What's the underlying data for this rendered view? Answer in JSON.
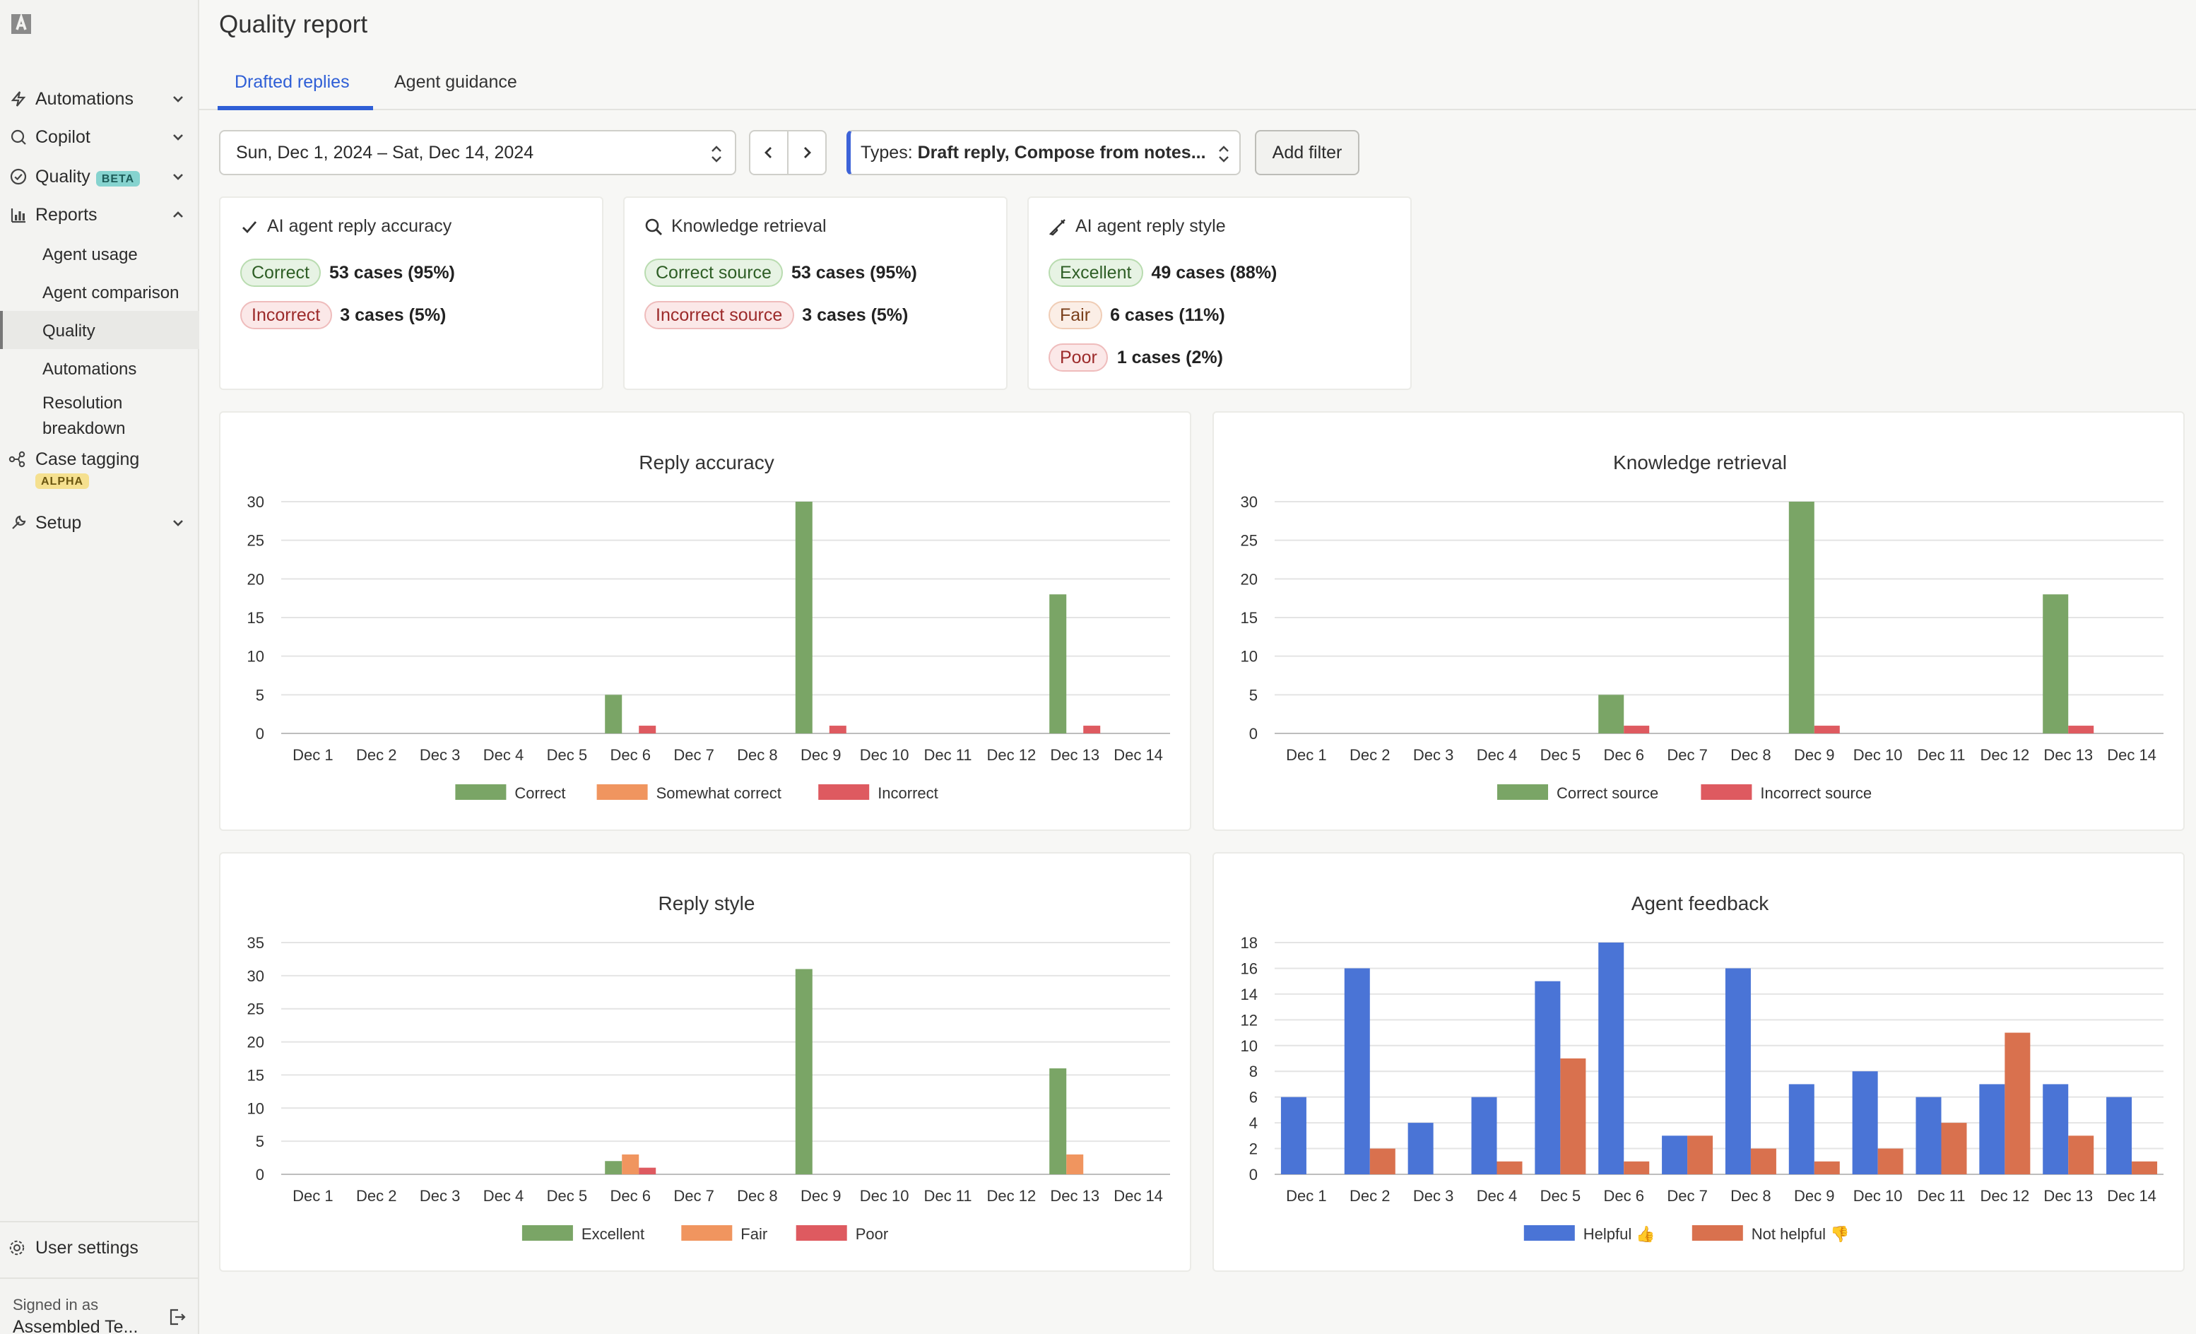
{
  "sidebar": {
    "items": [
      {
        "label": "Automations",
        "icon": "bolt-icon"
      },
      {
        "label": "Copilot",
        "icon": "chat-icon"
      },
      {
        "label": "Quality",
        "icon": "check-circle-icon",
        "badge": "BETA"
      },
      {
        "label": "Reports",
        "icon": "bar-chart-icon"
      }
    ],
    "reports_sub": [
      {
        "label": "Agent usage"
      },
      {
        "label": "Agent comparison"
      },
      {
        "label": "Quality"
      },
      {
        "label": "Automations"
      },
      {
        "label": "Resolution breakdown"
      }
    ],
    "case_tagging": {
      "label": "Case tagging",
      "badge": "ALPHA"
    },
    "setup": {
      "label": "Setup"
    },
    "user_settings": "User settings",
    "signed_in_label": "Signed in as",
    "signed_in_name": "Assembled Te..."
  },
  "header": {
    "title": "Quality report",
    "tabs": [
      "Drafted replies",
      "Agent guidance"
    ]
  },
  "filters": {
    "date_range": "Sun, Dec 1, 2024 – Sat, Dec 14, 2024",
    "types_prefix": "Types: ",
    "types_value": "Draft reply, Compose from notes...",
    "add_filter": "Add filter"
  },
  "summary": [
    {
      "title": "AI agent reply accuracy",
      "icon": "check-icon",
      "rows": [
        {
          "label": "Correct",
          "value": "53 cases (95%)",
          "tone": "good"
        },
        {
          "label": "Incorrect",
          "value": "3 cases (5%)",
          "tone": "bad"
        }
      ]
    },
    {
      "title": "Knowledge retrieval",
      "icon": "search-icon",
      "rows": [
        {
          "label": "Correct source",
          "value": "53 cases (95%)",
          "tone": "good"
        },
        {
          "label": "Incorrect source",
          "value": "3 cases (5%)",
          "tone": "bad"
        }
      ]
    },
    {
      "title": "AI agent reply style",
      "icon": "brush-icon",
      "rows": [
        {
          "label": "Excellent",
          "value": "49 cases (88%)",
          "tone": "good"
        },
        {
          "label": "Fair",
          "value": "6 cases (11%)",
          "tone": "mid"
        },
        {
          "label": "Poor",
          "value": "1 cases (2%)",
          "tone": "bad"
        }
      ]
    }
  ],
  "chart_data": [
    {
      "type": "bar",
      "title": "Reply accuracy",
      "categories": [
        "Dec 1",
        "Dec 2",
        "Dec 3",
        "Dec 4",
        "Dec 5",
        "Dec 6",
        "Dec 7",
        "Dec 8",
        "Dec 9",
        "Dec 10",
        "Dec 11",
        "Dec 12",
        "Dec 13",
        "Dec 14"
      ],
      "yticks": [
        0,
        5,
        10,
        15,
        20,
        25,
        30
      ],
      "ylim": [
        0,
        30
      ],
      "legend": "bottom",
      "series": [
        {
          "name": "Correct",
          "color": "#7aa566",
          "values": [
            0,
            0,
            0,
            0,
            0,
            5,
            0,
            0,
            30,
            0,
            0,
            0,
            18,
            0
          ]
        },
        {
          "name": "Somewhat correct",
          "color": "#f0955f",
          "values": [
            0,
            0,
            0,
            0,
            0,
            0,
            0,
            0,
            0,
            0,
            0,
            0,
            0,
            0
          ]
        },
        {
          "name": "Incorrect",
          "color": "#de5a60",
          "values": [
            0,
            0,
            0,
            0,
            0,
            1,
            0,
            0,
            1,
            0,
            0,
            0,
            1,
            0
          ]
        }
      ]
    },
    {
      "type": "bar",
      "title": "Knowledge retrieval",
      "categories": [
        "Dec 1",
        "Dec 2",
        "Dec 3",
        "Dec 4",
        "Dec 5",
        "Dec 6",
        "Dec 7",
        "Dec 8",
        "Dec 9",
        "Dec 10",
        "Dec 11",
        "Dec 12",
        "Dec 13",
        "Dec 14"
      ],
      "yticks": [
        0,
        5,
        10,
        15,
        20,
        25,
        30
      ],
      "ylim": [
        0,
        30
      ],
      "legend": "bottom",
      "series": [
        {
          "name": "Correct source",
          "color": "#7aa566",
          "values": [
            0,
            0,
            0,
            0,
            0,
            5,
            0,
            0,
            30,
            0,
            0,
            0,
            18,
            0
          ]
        },
        {
          "name": "Incorrect source",
          "color": "#de5a60",
          "values": [
            0,
            0,
            0,
            0,
            0,
            1,
            0,
            0,
            1,
            0,
            0,
            0,
            1,
            0
          ]
        }
      ]
    },
    {
      "type": "bar",
      "title": "Reply style",
      "categories": [
        "Dec 1",
        "Dec 2",
        "Dec 3",
        "Dec 4",
        "Dec 5",
        "Dec 6",
        "Dec 7",
        "Dec 8",
        "Dec 9",
        "Dec 10",
        "Dec 11",
        "Dec 12",
        "Dec 13",
        "Dec 14"
      ],
      "yticks": [
        0,
        5,
        10,
        15,
        20,
        25,
        30,
        35
      ],
      "ylim": [
        0,
        35
      ],
      "legend": "bottom",
      "series": [
        {
          "name": "Excellent",
          "color": "#7aa566",
          "values": [
            0,
            0,
            0,
            0,
            0,
            2,
            0,
            0,
            31,
            0,
            0,
            0,
            16,
            0
          ]
        },
        {
          "name": "Fair",
          "color": "#f0955f",
          "values": [
            0,
            0,
            0,
            0,
            0,
            3,
            0,
            0,
            0,
            0,
            0,
            0,
            3,
            0
          ]
        },
        {
          "name": "Poor",
          "color": "#de5a60",
          "values": [
            0,
            0,
            0,
            0,
            0,
            1,
            0,
            0,
            0,
            0,
            0,
            0,
            0,
            0
          ]
        }
      ]
    },
    {
      "type": "bar",
      "title": "Agent feedback",
      "categories": [
        "Dec 1",
        "Dec 2",
        "Dec 3",
        "Dec 4",
        "Dec 5",
        "Dec 6",
        "Dec 7",
        "Dec 8",
        "Dec 9",
        "Dec 10",
        "Dec 11",
        "Dec 12",
        "Dec 13",
        "Dec 14"
      ],
      "yticks": [
        0,
        2,
        4,
        6,
        8,
        10,
        12,
        14,
        16,
        18
      ],
      "ylim": [
        0,
        18
      ],
      "legend": "bottom",
      "series": [
        {
          "name": "Helpful 👍",
          "color": "#4a74d6",
          "values": [
            6,
            16,
            4,
            6,
            15,
            18,
            3,
            16,
            7,
            8,
            6,
            7,
            7,
            6
          ]
        },
        {
          "name": "Not helpful 👎",
          "color": "#d9714e",
          "values": [
            0,
            2,
            0,
            1,
            9,
            1,
            3,
            2,
            1,
            2,
            4,
            11,
            3,
            1
          ]
        }
      ]
    }
  ]
}
